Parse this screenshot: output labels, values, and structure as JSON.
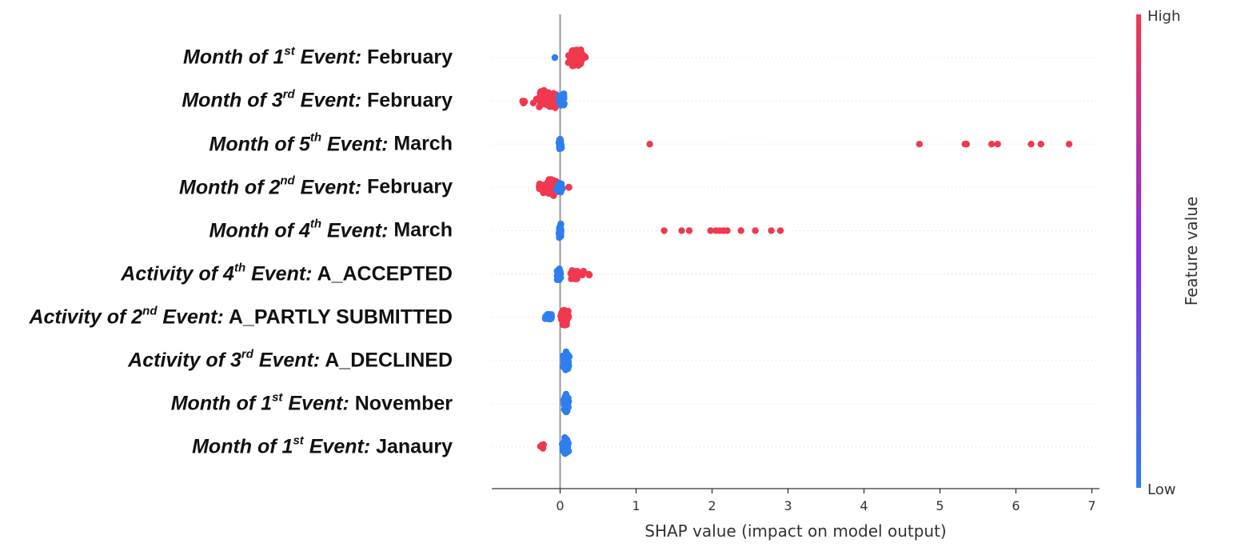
{
  "chart_data": {
    "type": "scatter",
    "subtype": "shap-beeswarm",
    "xlabel": "SHAP value (impact on model output)",
    "xticks": [
      0,
      1,
      2,
      3,
      4,
      5,
      6,
      7
    ],
    "xlim": [
      -0.9,
      7.1
    ],
    "colorbar": {
      "label": "Feature value",
      "high": "High",
      "low": "Low"
    },
    "colors": {
      "high": "#f0384e",
      "low": "#2f7ef0",
      "mid": "#8a2be2",
      "zero_line": "#999999",
      "row_guide": "#d8d8d8"
    },
    "features": [
      {
        "pre": "Month of 1",
        "sup": "st",
        "post": " Event:",
        "value": " February",
        "points": [
          {
            "v": -0.07,
            "f": "low"
          },
          {
            "v": 0.2,
            "f": "high",
            "n": 70,
            "spread": 0.12
          },
          {
            "v": 0.28,
            "f": "high",
            "n": 30,
            "spread": 0.06
          }
        ]
      },
      {
        "pre": "Month of 3",
        "sup": "rd",
        "post": " Event:",
        "value": " February",
        "points": [
          {
            "v": -0.48,
            "f": "high",
            "n": 6,
            "spread": 0.05
          },
          {
            "v": -0.2,
            "f": "high",
            "n": 60,
            "spread": 0.2
          },
          {
            "v": 0.02,
            "f": "low",
            "n": 40,
            "spread": 0.06
          }
        ]
      },
      {
        "pre": "Month of 5",
        "sup": "th",
        "post": " Event:",
        "value": " March",
        "points": [
          {
            "v": 0.0,
            "f": "low",
            "n": 40,
            "spread": 0.02
          },
          {
            "v": 1.18,
            "f": "high"
          },
          {
            "v": 4.73,
            "f": "high"
          },
          {
            "v": 5.33,
            "f": "high"
          },
          {
            "v": 5.35,
            "f": "high"
          },
          {
            "v": 5.68,
            "f": "high"
          },
          {
            "v": 5.76,
            "f": "high"
          },
          {
            "v": 6.2,
            "f": "high"
          },
          {
            "v": 6.33,
            "f": "high"
          },
          {
            "v": 6.7,
            "f": "high"
          }
        ]
      },
      {
        "pre": "Month of 2",
        "sup": "nd",
        "post": " Event:",
        "value": " February",
        "points": [
          {
            "v": -0.15,
            "f": "high",
            "n": 70,
            "spread": 0.18
          },
          {
            "v": 0.0,
            "f": "low",
            "n": 30,
            "spread": 0.06
          },
          {
            "v": 0.12,
            "f": "high",
            "n": 3,
            "spread": 0.02
          }
        ]
      },
      {
        "pre": "Month of 4",
        "sup": "th",
        "post": " Event:",
        "value": " March",
        "points": [
          {
            "v": 0.0,
            "f": "low",
            "n": 40,
            "spread": 0.02
          },
          {
            "v": 1.37,
            "f": "high"
          },
          {
            "v": 1.6,
            "f": "high"
          },
          {
            "v": 1.7,
            "f": "high"
          },
          {
            "v": 1.98,
            "f": "high"
          },
          {
            "v": 2.05,
            "f": "high"
          },
          {
            "v": 2.1,
            "f": "high"
          },
          {
            "v": 2.15,
            "f": "high"
          },
          {
            "v": 2.2,
            "f": "high"
          },
          {
            "v": 2.38,
            "f": "high"
          },
          {
            "v": 2.57,
            "f": "high"
          },
          {
            "v": 2.78,
            "f": "high"
          },
          {
            "v": 2.9,
            "f": "high"
          }
        ]
      },
      {
        "pre": "Activity of 4",
        "sup": "th",
        "post": " Event:",
        "value": " A_ACCEPTED",
        "points": [
          {
            "v": -0.02,
            "f": "low",
            "n": 40,
            "spread": 0.04
          },
          {
            "v": 0.2,
            "f": "high",
            "n": 30,
            "spread": 0.13
          },
          {
            "v": 0.38,
            "f": "high",
            "n": 3,
            "spread": 0.02
          }
        ]
      },
      {
        "pre": "Activity of 2",
        "sup": "nd",
        "post": " Event:",
        "value": " A_PARTLY SUBMITTED",
        "points": [
          {
            "v": -0.15,
            "f": "low",
            "n": 20,
            "spread": 0.08
          },
          {
            "v": 0.06,
            "f": "high",
            "n": 70,
            "spread": 0.08
          }
        ]
      },
      {
        "pre": "Activity of 3",
        "sup": "rd",
        "post": " Event:",
        "value": " A_DECLINED",
        "points": [
          {
            "v": 0.08,
            "f": "low",
            "n": 80,
            "spread": 0.05
          }
        ]
      },
      {
        "pre": "Month of 1",
        "sup": "st",
        "post": " Event:",
        "value": " November",
        "points": [
          {
            "v": 0.08,
            "f": "low",
            "n": 80,
            "spread": 0.04
          }
        ]
      },
      {
        "pre": "Month of 1",
        "sup": "st",
        "post": " Event:",
        "value": " Janaury",
        "points": [
          {
            "v": -0.22,
            "f": "high",
            "n": 8,
            "spread": 0.06
          },
          {
            "v": 0.07,
            "f": "low",
            "n": 80,
            "spread": 0.05
          }
        ]
      }
    ]
  }
}
